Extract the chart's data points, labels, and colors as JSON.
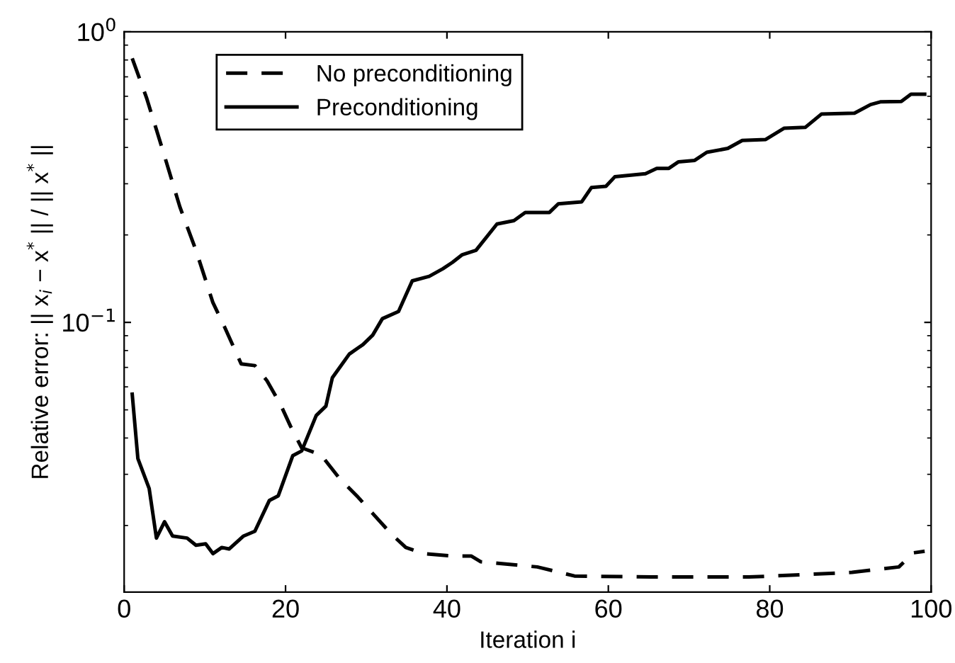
{
  "chart_data": {
    "type": "line",
    "xlabel": "Iteration i",
    "ylabel": "Relative error: || x$_{i}$ − x$^{*}$ || / || x$^{*}$ ||",
    "log": "y",
    "xlim": [
      0,
      100
    ],
    "xticks": [
      0,
      20,
      40,
      60,
      80,
      100
    ],
    "ylim": [
      0.0118,
      1
    ],
    "yticks": [
      {
        "value": 1,
        "label": "10$^{0}$"
      },
      {
        "value": 0.1,
        "label": "10$^{−1}$"
      }
    ],
    "grid": false,
    "legend": "top left",
    "marker": "none",
    "series": [
      {
        "name": "No preconditioning",
        "color": "#000000",
        "line_style": "dashed",
        "x": [
          1,
          2.8,
          4.8,
          6.9,
          8.9,
          11,
          12.4,
          14.5,
          16.2,
          17.7,
          19.4,
          20.6,
          22,
          24.4,
          26.7,
          29,
          30.8,
          33.1,
          34.9,
          37.2,
          40.7,
          43,
          44.2,
          51.2,
          55.8,
          65.4,
          77.4,
          83.2,
          90.2,
          96,
          97.8,
          99.2
        ],
        "values": [
          0.81,
          0.59,
          0.39,
          0.25,
          0.177,
          0.117,
          0.097,
          0.072,
          0.071,
          0.063,
          0.052,
          0.044,
          0.037,
          0.035,
          0.029,
          0.025,
          0.022,
          0.0187,
          0.0168,
          0.016,
          0.0157,
          0.0157,
          0.015,
          0.0144,
          0.0134,
          0.0133,
          0.0133,
          0.0135,
          0.0138,
          0.0144,
          0.0161,
          0.0163
        ]
      },
      {
        "name": "Preconditioning",
        "color": "#000000",
        "line_style": "solid",
        "x": [
          1,
          1.7,
          3.1,
          4,
          5,
          6,
          7.8,
          8.9,
          10.1,
          11,
          12.1,
          13,
          14.8,
          16.2,
          18,
          19.1,
          20.9,
          22,
          23.8,
          25,
          25.8,
          27.9,
          29.6,
          30.8,
          32,
          34,
          35.7,
          37.8,
          39.5,
          40.7,
          41.9,
          43.6,
          46.2,
          48.3,
          49.7,
          52.7,
          53.8,
          56.7,
          57.9,
          59.7,
          60.8,
          64.6,
          66,
          67.5,
          68.7,
          70.7,
          72.2,
          74.8,
          76.6,
          79.5,
          81.8,
          84.4,
          86.4,
          90.5,
          92.5,
          93.7,
          96.3,
          97.5,
          99.2
        ],
        "values": [
          0.0566,
          0.034,
          0.0268,
          0.0181,
          0.0206,
          0.0184,
          0.0181,
          0.0171,
          0.0173,
          0.016,
          0.0168,
          0.0166,
          0.0184,
          0.0191,
          0.0244,
          0.0253,
          0.0348,
          0.0361,
          0.0478,
          0.0515,
          0.0645,
          0.0778,
          0.0839,
          0.0904,
          0.103,
          0.109,
          0.139,
          0.144,
          0.153,
          0.161,
          0.171,
          0.177,
          0.218,
          0.224,
          0.239,
          0.239,
          0.256,
          0.26,
          0.291,
          0.294,
          0.317,
          0.325,
          0.339,
          0.339,
          0.357,
          0.361,
          0.385,
          0.397,
          0.423,
          0.426,
          0.466,
          0.469,
          0.521,
          0.525,
          0.562,
          0.574,
          0.576,
          0.61,
          0.61
        ]
      }
    ]
  }
}
